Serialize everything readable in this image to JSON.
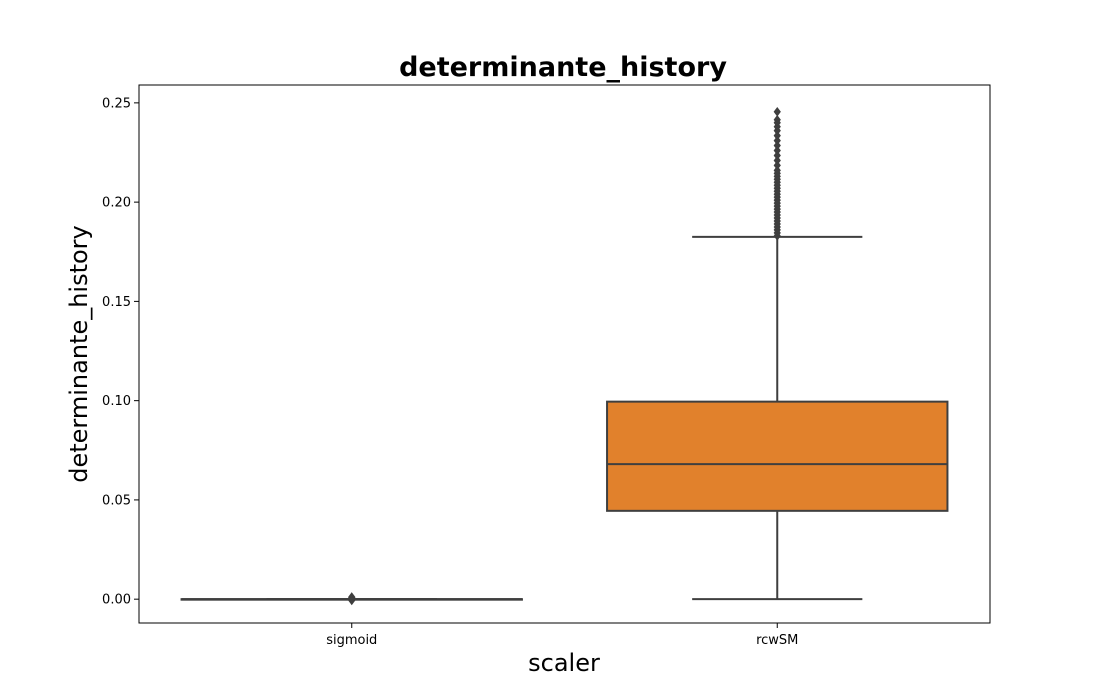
{
  "chart_data": {
    "type": "box",
    "title": "determinante_history",
    "xlabel": "scaler",
    "ylabel": "determinante_history",
    "ylim": [
      -0.012,
      0.259
    ],
    "yticks": [
      "0.00",
      "0.05",
      "0.10",
      "0.15",
      "0.20",
      "0.25"
    ],
    "categories": [
      "sigmoid",
      "rcwSM"
    ],
    "grid": false,
    "boxes": [
      {
        "category": "sigmoid",
        "color": "#1f77b4",
        "whisker_low": 0.0,
        "q1": 0.0,
        "median": 0.0,
        "q3": 0.0,
        "whisker_high": 0.0,
        "outliers": [
          0.0005,
          0.0008,
          0.0011,
          -0.0003,
          -0.0006
        ]
      },
      {
        "category": "rcwSM",
        "color": "#e1812c",
        "whisker_low": 0.0,
        "q1": 0.0445,
        "median": 0.068,
        "q3": 0.0995,
        "whisker_high": 0.1825,
        "outliers": [
          0.183,
          0.1845,
          0.186,
          0.1875,
          0.189,
          0.1905,
          0.192,
          0.1935,
          0.195,
          0.1965,
          0.198,
          0.1995,
          0.201,
          0.2025,
          0.204,
          0.2055,
          0.207,
          0.2085,
          0.21,
          0.2115,
          0.213,
          0.2145,
          0.216,
          0.2185,
          0.221,
          0.2235,
          0.226,
          0.2285,
          0.231,
          0.2335,
          0.236,
          0.238,
          0.24,
          0.2415,
          0.2455
        ]
      }
    ]
  }
}
